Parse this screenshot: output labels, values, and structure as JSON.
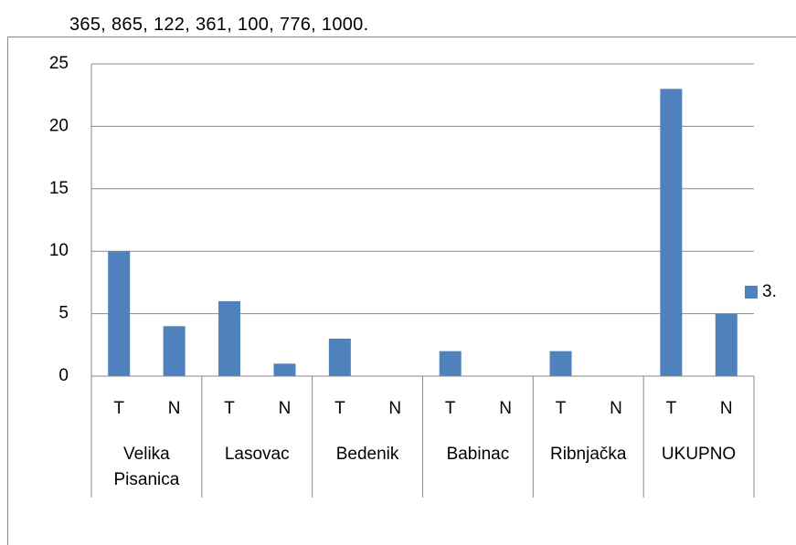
{
  "header_text": "365,  865,  122,  361,  100,  776,  1000.",
  "chart_data": {
    "type": "bar",
    "categories": [
      "T",
      "N",
      "T",
      "N",
      "T",
      "N",
      "T",
      "N",
      "T",
      "N",
      "T",
      "N"
    ],
    "groups": [
      "Velika Pisanica",
      "Lasovac",
      "Bedenik",
      "Babinac",
      "Ribnjačka",
      "UKUPNO"
    ],
    "series": [
      {
        "name": "3.",
        "color": "#4f81bd",
        "values": [
          10,
          4,
          6,
          1,
          3,
          0,
          2,
          0,
          2,
          0,
          23,
          5
        ]
      }
    ],
    "ylim": [
      0,
      25
    ],
    "yticks": [
      0,
      5,
      10,
      15,
      20,
      25
    ],
    "grid": true,
    "legend": "right"
  }
}
